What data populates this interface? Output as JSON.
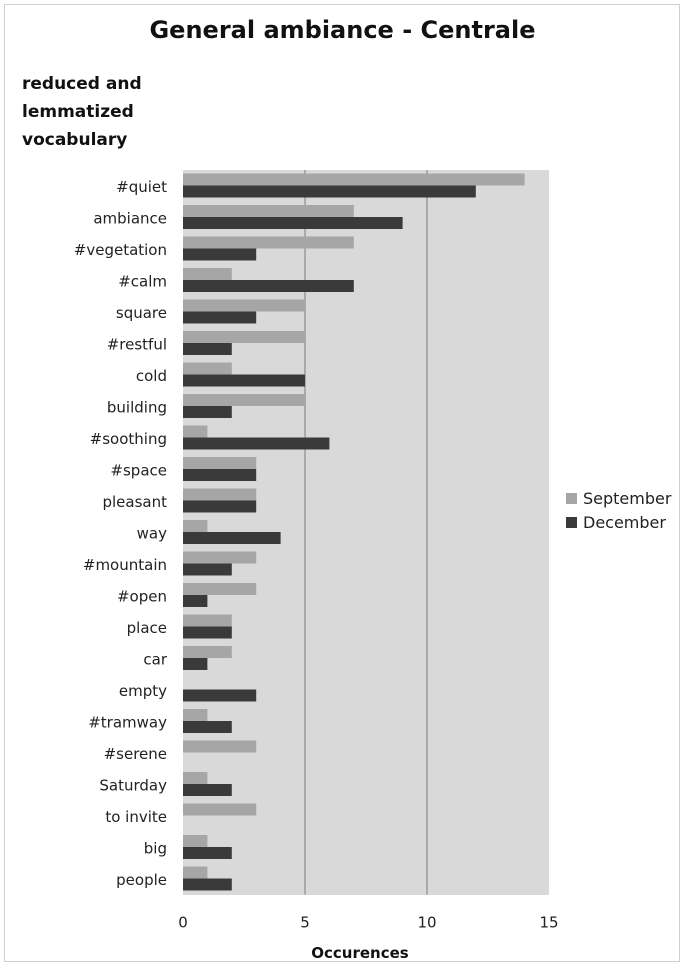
{
  "chart_data": {
    "type": "bar",
    "orientation": "horizontal",
    "title": "General ambiance - Centrale",
    "ylabel": "reduced and lemmatized vocabulary",
    "xlabel": "Occurences",
    "xlim": [
      0,
      15
    ],
    "xticks": [
      "0",
      "5",
      "10",
      "15"
    ],
    "grid": "vertical",
    "legend_position": "right",
    "categories": [
      "#quiet",
      "ambiance",
      "#vegetation",
      "#calm",
      "square",
      "#restful",
      "cold",
      "building",
      "#soothing",
      "#space",
      "pleasant",
      "way",
      "#mountain",
      "#open",
      "place",
      "car",
      "empty",
      "#tramway",
      "#serene",
      "Saturday",
      "to invite",
      "big",
      "people"
    ],
    "series": [
      {
        "name": "September",
        "color": "#a6a6a6",
        "values": [
          14,
          7,
          7,
          2,
          5,
          5,
          2,
          5,
          1,
          3,
          3,
          1,
          3,
          3,
          2,
          2,
          0,
          1,
          3,
          1,
          3,
          1,
          1
        ]
      },
      {
        "name": "December",
        "color": "#3a3a3a",
        "values": [
          12,
          9,
          3,
          7,
          3,
          2,
          5,
          2,
          6,
          3,
          3,
          4,
          2,
          1,
          2,
          1,
          3,
          2,
          0,
          2,
          0,
          2,
          2
        ]
      }
    ]
  }
}
